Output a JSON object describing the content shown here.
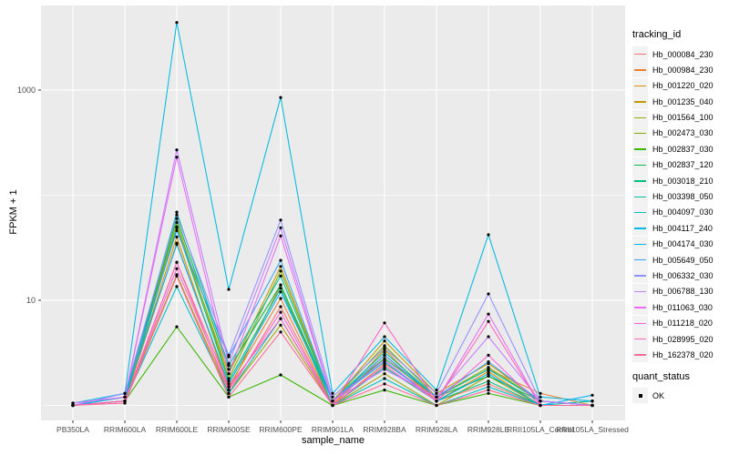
{
  "chart_data": {
    "type": "line",
    "title": "",
    "xlabel": "sample_name",
    "ylabel": "FPKM + 1",
    "yscale": "log10",
    "ylim_log": [
      -0.143,
      3.805
    ],
    "yticks": [
      {
        "label": "10",
        "value": 10
      },
      {
        "label": "1000",
        "value": 1000
      }
    ],
    "minor_grid_logs": [
      0,
      2
    ],
    "major_grid_logs": [
      1,
      3
    ],
    "categories": [
      "PB350LA",
      "RRIM600LA",
      "RRIM600LE",
      "RRIM600SE",
      "RRIM600PE",
      "RRIM901LA",
      "RRIM928BA",
      "RRIM928LA",
      "RRIM928LE",
      "RRII105LA_Control",
      "RRII105LA_Stressed"
    ],
    "series": [
      {
        "name": "Hb_000084_230",
        "color": "#F8766D",
        "values": [
          1.0,
          1.1,
          23,
          1.3,
          8.7,
          1.0,
          3.0,
          1.1,
          1.6,
          1.0,
          1.0
        ]
      },
      {
        "name": "Hb_000984_230",
        "color": "#EA8331",
        "values": [
          1.0,
          1.1,
          35,
          1.5,
          10.4,
          1.0,
          2.5,
          1.2,
          2.2,
          1.3,
          1.0
        ]
      },
      {
        "name": "Hb_001220_020",
        "color": "#D89000",
        "values": [
          1.0,
          1.1,
          40,
          1.4,
          14,
          1.0,
          3.4,
          1.1,
          2.1,
          1.0,
          1.1
        ]
      },
      {
        "name": "Hb_001235_040",
        "color": "#C09B00",
        "values": [
          1.0,
          1.2,
          50,
          2.0,
          21,
          1.1,
          4.1,
          1.3,
          2.5,
          1.1,
          1.0
        ]
      },
      {
        "name": "Hb_001564_100",
        "color": "#A3A500",
        "values": [
          1.0,
          1.1,
          17.5,
          1.3,
          5.8,
          1.0,
          2.0,
          1.0,
          1.9,
          1.0,
          1.0
        ]
      },
      {
        "name": "Hb_002473_030",
        "color": "#7CAE00",
        "values": [
          1.0,
          1.2,
          55,
          1.8,
          19,
          1.1,
          3.7,
          1.2,
          2.3,
          1.1,
          1.0
        ]
      },
      {
        "name": "Hb_002837_030",
        "color": "#39B600",
        "values": [
          1.0,
          1.1,
          5.6,
          1.2,
          1.95,
          1.0,
          1.4,
          1.0,
          1.3,
          1.0,
          1.0
        ]
      },
      {
        "name": "Hb_002837_120",
        "color": "#00BB4E",
        "values": [
          1.0,
          1.2,
          60,
          2.2,
          14,
          1.1,
          2.8,
          1.2,
          1.9,
          1.1,
          1.0
        ]
      },
      {
        "name": "Hb_003018_210",
        "color": "#00BF7D",
        "values": [
          1.0,
          1.1,
          49,
          1.7,
          13,
          1.0,
          2.3,
          1.1,
          1.7,
          1.0,
          1.0
        ]
      },
      {
        "name": "Hb_003398_050",
        "color": "#00C1A3",
        "values": [
          1.0,
          1.2,
          69,
          2.4,
          17,
          1.1,
          3.2,
          1.2,
          2.2,
          1.1,
          1.0
        ]
      },
      {
        "name": "Hb_004097_030",
        "color": "#00BFC4",
        "values": [
          1.0,
          1.1,
          13.5,
          1.3,
          6.7,
          1.0,
          1.8,
          1.0,
          1.5,
          1.0,
          1.1
        ]
      },
      {
        "name": "Hb_004117_240",
        "color": "#00BAE0",
        "values": [
          1.05,
          1.3,
          4400,
          12.7,
          850,
          1.3,
          4.5,
          1.4,
          42,
          1.2,
          1.1
        ]
      },
      {
        "name": "Hb_004174_030",
        "color": "#00B0F6",
        "values": [
          1.0,
          1.2,
          34,
          1.6,
          12,
          1.1,
          2.6,
          1.1,
          2.0,
          1.0,
          1.25
        ]
      },
      {
        "name": "Hb_005649_050",
        "color": "#35A2FF",
        "values": [
          1.0,
          1.3,
          46,
          2.9,
          24,
          1.1,
          3.0,
          1.2,
          2.6,
          1.1,
          1.0
        ]
      },
      {
        "name": "Hb_006332_030",
        "color": "#9590FF",
        "values": [
          1.0,
          1.3,
          65,
          3.0,
          58,
          1.2,
          3.5,
          1.3,
          11.5,
          1.1,
          1.0
        ]
      },
      {
        "name": "Hb_006788_130",
        "color": "#C77CFF",
        "values": [
          1.05,
          1.2,
          270,
          2.5,
          49,
          1.1,
          2.2,
          1.2,
          4.5,
          1.1,
          1.0
        ]
      },
      {
        "name": "Hb_011063_030",
        "color": "#E76BF3",
        "values": [
          1.05,
          1.2,
          230,
          2.0,
          41,
          1.1,
          2.7,
          1.1,
          7.4,
          1.0,
          1.0
        ]
      },
      {
        "name": "Hb_011218_020",
        "color": "#FA62DB",
        "values": [
          1.0,
          1.1,
          20,
          1.4,
          7.7,
          1.0,
          2.4,
          1.1,
          3.0,
          1.0,
          1.0
        ]
      },
      {
        "name": "Hb_028995_020",
        "color": "#FF62BC",
        "values": [
          1.0,
          1.1,
          23,
          1.5,
          6.7,
          1.0,
          6.1,
          1.1,
          6.3,
          1.0,
          1.0
        ]
      },
      {
        "name": "Hb_162378_020",
        "color": "#FF6A98",
        "values": [
          1.0,
          1.05,
          17,
          1.2,
          5.0,
          1.0,
          1.6,
          1.0,
          1.4,
          1.0,
          1.0
        ]
      }
    ],
    "legend_position": "right",
    "grid": true
  },
  "legend": {
    "tracking_title": "tracking_id",
    "quant_title": "quant_status",
    "quant_value": "OK"
  },
  "style": {
    "panel_bg": "#EBEBEB",
    "grid_color": "#FFFFFF",
    "point_color": "#000000",
    "tick_label_color": "#4D4D4D",
    "tick_color": "#333333"
  }
}
